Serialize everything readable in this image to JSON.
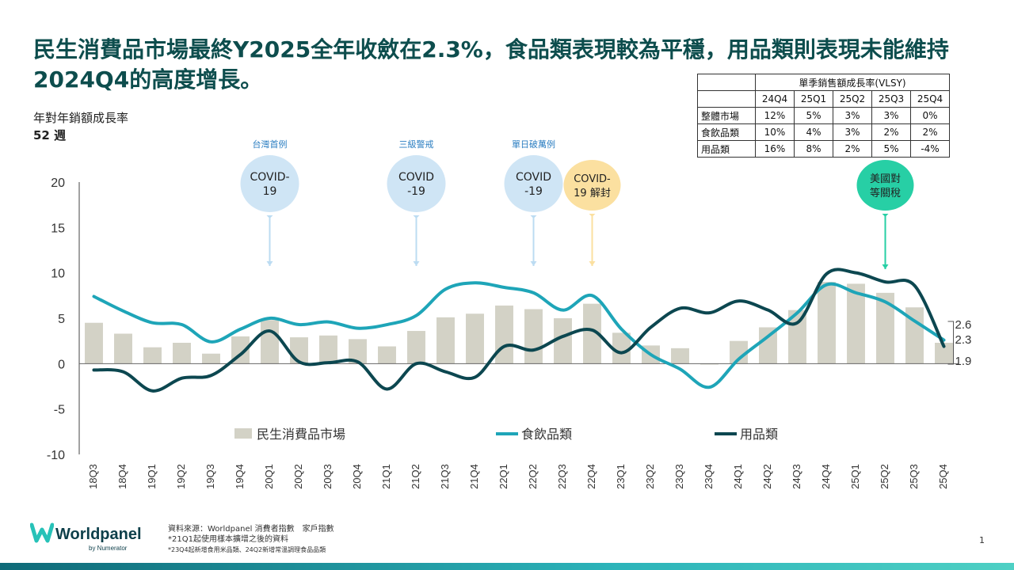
{
  "title": "民生消費品市場最終Y2025全年收斂在2.3%，食品類表現較為平穩，用品類則表現未能維持2024Q4的高度增長。",
  "y_axis_title": {
    "line1": "年對年銷額成長率",
    "line2": "52 週"
  },
  "table": {
    "header": "單季銷售額成長率(VLSY)",
    "columns": [
      "24Q4",
      "25Q1",
      "25Q2",
      "25Q3",
      "25Q4"
    ],
    "rows": [
      {
        "label": "整體市場",
        "values": [
          "12%",
          "5%",
          "3%",
          "3%",
          "0%"
        ]
      },
      {
        "label": "食飲品類",
        "values": [
          "10%",
          "4%",
          "3%",
          "2%",
          "2%"
        ]
      },
      {
        "label": "用品類",
        "values": [
          "16%",
          "8%",
          "2%",
          "5%",
          "-4%"
        ]
      }
    ]
  },
  "chart_data": {
    "type": "bar",
    "categories": [
      "18Q3",
      "18Q4",
      "19Q1",
      "19Q2",
      "19Q3",
      "19Q4",
      "20Q1",
      "20Q2",
      "20Q3",
      "20Q4",
      "21Q1",
      "21Q2",
      "21Q3",
      "21Q4",
      "22Q1",
      "22Q2",
      "22Q3",
      "22Q4",
      "23Q1",
      "23Q2",
      "23Q3",
      "23Q4",
      "24Q1",
      "24Q2",
      "24Q3",
      "24Q4",
      "25Q1",
      "25Q2",
      "25Q3",
      "25Q4"
    ],
    "series": [
      {
        "name": "民生消費品市場",
        "kind": "bar",
        "color": "#d3d2c6",
        "values": [
          4.5,
          3.3,
          1.8,
          2.3,
          1.1,
          3.0,
          4.8,
          2.9,
          3.1,
          2.7,
          1.9,
          3.6,
          5.1,
          5.5,
          6.4,
          6.0,
          5.0,
          6.6,
          3.4,
          2.0,
          1.7,
          -0.1,
          2.5,
          4.0,
          5.9,
          9.0,
          8.8,
          7.8,
          6.2,
          2.3
        ]
      },
      {
        "name": "食飲品類",
        "kind": "line",
        "color": "#1ea5b8",
        "values": [
          7.4,
          5.8,
          4.5,
          4.3,
          2.4,
          3.8,
          5.0,
          4.3,
          4.6,
          3.9,
          4.3,
          5.3,
          8.2,
          8.9,
          8.4,
          7.8,
          5.9,
          7.5,
          3.8,
          1.0,
          -0.6,
          -2.6,
          0.5,
          3.0,
          5.6,
          8.7,
          7.8,
          6.8,
          4.7,
          2.6
        ]
      },
      {
        "name": "用品類",
        "kind": "line",
        "color": "#0c4750",
        "values": [
          -0.7,
          -0.9,
          -3.0,
          -1.6,
          -1.3,
          1.0,
          3.6,
          0.2,
          0.1,
          0.2,
          -2.8,
          0.0,
          -0.9,
          -1.5,
          1.9,
          1.5,
          3.0,
          3.7,
          1.2,
          4.0,
          6.1,
          5.6,
          6.9,
          5.9,
          4.5,
          9.9,
          10.0,
          9.0,
          8.6,
          1.9
        ]
      }
    ],
    "ylim": [
      -10,
      20
    ],
    "yticks": [
      20,
      15,
      10,
      5,
      0,
      -5,
      -10
    ],
    "end_labels": [
      "2.6",
      "2.3",
      "1.9"
    ],
    "legend_position": "bottom-center",
    "annotations": [
      {
        "label": "台灣首例",
        "bubble": "COVID-19",
        "quarter": "20Q1",
        "color": "#cfe5f5",
        "label_color": "#2b7ec1"
      },
      {
        "label": "三級警戒",
        "bubble": "COVID -19",
        "quarter": "21Q2",
        "color": "#cfe5f5",
        "label_color": "#2b7ec1"
      },
      {
        "label": "單日破萬例",
        "bubble": "COVID -19",
        "quarter": "22Q2",
        "color": "#cfe5f5",
        "label_color": "#2b7ec1"
      },
      {
        "label": "",
        "bubble": "COVID-19 解封",
        "quarter": "22Q4",
        "color": "#fbe0a0",
        "label_color": ""
      },
      {
        "label": "",
        "bubble": "美國對等關稅",
        "quarter": "25Q2",
        "color": "#27cfa5",
        "label_color": ""
      }
    ]
  },
  "footer": {
    "brand": "Worldpanel",
    "brand_sub": "by Numerator",
    "source_line1": "資料來源：Worldpanel 消費者指數　家戶指數",
    "source_line2": "*21Q1起使用樣本擴增之後的資料",
    "source_line3": "*23Q4起新增食用米品類、24Q2新增常溫調理食品品類",
    "page": "1"
  },
  "colors": {
    "title": "#0d4d4d",
    "bar": "#d3d2c6",
    "food": "#1ea5b8",
    "goods": "#0c4750"
  }
}
